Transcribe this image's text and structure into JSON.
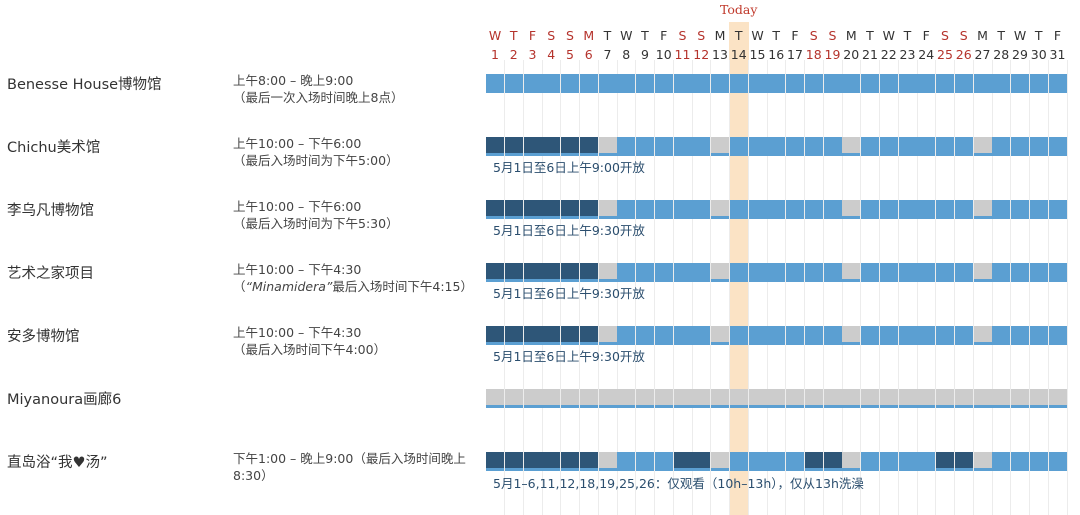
{
  "today": {
    "label": "Today",
    "day_index": 13
  },
  "colors": {
    "open": "#5b9fd2",
    "dark": "#2e5678",
    "closed": "#cccccc",
    "today_band": "#fbe3c5",
    "today_text": "#c0392b",
    "weekend_text": "#b5332c",
    "weekday_text": "#333333",
    "note_text": "#2b4e6e"
  },
  "days": [
    {
      "dow": "W",
      "num": "1",
      "red": true
    },
    {
      "dow": "T",
      "num": "2",
      "red": true
    },
    {
      "dow": "F",
      "num": "3",
      "red": true
    },
    {
      "dow": "S",
      "num": "4",
      "red": true
    },
    {
      "dow": "S",
      "num": "5",
      "red": true
    },
    {
      "dow": "M",
      "num": "6",
      "red": true
    },
    {
      "dow": "T",
      "num": "7",
      "red": false
    },
    {
      "dow": "W",
      "num": "8",
      "red": false
    },
    {
      "dow": "T",
      "num": "9",
      "red": false
    },
    {
      "dow": "F",
      "num": "10",
      "red": false
    },
    {
      "dow": "S",
      "num": "11",
      "red": true
    },
    {
      "dow": "S",
      "num": "12",
      "red": true
    },
    {
      "dow": "M",
      "num": "13",
      "red": false
    },
    {
      "dow": "T",
      "num": "14",
      "red": false
    },
    {
      "dow": "W",
      "num": "15",
      "red": false
    },
    {
      "dow": "T",
      "num": "16",
      "red": false
    },
    {
      "dow": "F",
      "num": "17",
      "red": false
    },
    {
      "dow": "S",
      "num": "18",
      "red": true
    },
    {
      "dow": "S",
      "num": "19",
      "red": true
    },
    {
      "dow": "M",
      "num": "20",
      "red": false
    },
    {
      "dow": "T",
      "num": "21",
      "red": false
    },
    {
      "dow": "W",
      "num": "22",
      "red": false
    },
    {
      "dow": "T",
      "num": "23",
      "red": false
    },
    {
      "dow": "F",
      "num": "24",
      "red": false
    },
    {
      "dow": "S",
      "num": "25",
      "red": true
    },
    {
      "dow": "S",
      "num": "26",
      "red": true
    },
    {
      "dow": "M",
      "num": "27",
      "red": false
    },
    {
      "dow": "T",
      "num": "28",
      "red": false
    },
    {
      "dow": "W",
      "num": "29",
      "red": false
    },
    {
      "dow": "T",
      "num": "30",
      "red": false
    },
    {
      "dow": "F",
      "num": "31",
      "red": false
    }
  ],
  "venues": [
    {
      "name": "Benesse House博物馆",
      "hours_line1": "上午8:00 – 晚上9:00",
      "hours_line2": "（最后一次入场时间晚上8点）",
      "hours_line2_em": "",
      "hours_line2_rest": "",
      "note": "",
      "status": [
        "o",
        "o",
        "o",
        "o",
        "o",
        "o",
        "o",
        "o",
        "o",
        "o",
        "o",
        "o",
        "o",
        "o",
        "o",
        "o",
        "o",
        "o",
        "o",
        "o",
        "o",
        "o",
        "o",
        "o",
        "o",
        "o",
        "o",
        "o",
        "o",
        "o",
        "o"
      ]
    },
    {
      "name": "Chichu美术馆",
      "hours_line1": "上午10:00 – 下午6:00",
      "hours_line2": "（最后入场时间为下午5:00）",
      "hours_line2_em": "",
      "hours_line2_rest": "",
      "note": "5月1日至6日上午9:00开放",
      "status": [
        "d",
        "d",
        "d",
        "d",
        "d",
        "d",
        "c",
        "o",
        "o",
        "o",
        "o",
        "o",
        "c",
        "o",
        "o",
        "o",
        "o",
        "o",
        "o",
        "c",
        "o",
        "o",
        "o",
        "o",
        "o",
        "o",
        "c",
        "o",
        "o",
        "o",
        "o"
      ]
    },
    {
      "name": "李乌凡博物馆",
      "hours_line1": "上午10:00 – 下午6:00",
      "hours_line2": "（最后入场时间为下午5:30）",
      "hours_line2_em": "",
      "hours_line2_rest": "",
      "note": "5月1日至6日上午9:30开放",
      "status": [
        "d",
        "d",
        "d",
        "d",
        "d",
        "d",
        "c",
        "o",
        "o",
        "o",
        "o",
        "o",
        "c",
        "o",
        "o",
        "o",
        "o",
        "o",
        "o",
        "c",
        "o",
        "o",
        "o",
        "o",
        "o",
        "o",
        "c",
        "o",
        "o",
        "o",
        "o"
      ]
    },
    {
      "name": "艺术之家项目",
      "hours_line1": "上午10:00 – 下午4:30",
      "hours_line2": "（",
      "hours_line2_em": "“Minamidera”",
      "hours_line2_rest": "最后入场时间下午4:15）",
      "note": "5月1日至6日上午9:30开放",
      "status": [
        "d",
        "d",
        "d",
        "d",
        "d",
        "d",
        "c",
        "o",
        "o",
        "o",
        "o",
        "o",
        "c",
        "o",
        "o",
        "o",
        "o",
        "o",
        "o",
        "c",
        "o",
        "o",
        "o",
        "o",
        "o",
        "o",
        "c",
        "o",
        "o",
        "o",
        "o"
      ]
    },
    {
      "name": "安多博物馆",
      "hours_line1": "上午10:00 – 下午4:30",
      "hours_line2": "（最后入场时间下午4:00）",
      "hours_line2_em": "",
      "hours_line2_rest": "",
      "note": "5月1日至6日上午9:30开放",
      "status": [
        "d",
        "d",
        "d",
        "d",
        "d",
        "d",
        "c",
        "o",
        "o",
        "o",
        "o",
        "o",
        "c",
        "o",
        "o",
        "o",
        "o",
        "o",
        "o",
        "c",
        "o",
        "o",
        "o",
        "o",
        "o",
        "o",
        "c",
        "o",
        "o",
        "o",
        "o"
      ]
    },
    {
      "name": "Miyanoura画廊6",
      "hours_line1": "",
      "hours_line2": "",
      "hours_line2_em": "",
      "hours_line2_rest": "",
      "note": "",
      "status": [
        "c",
        "c",
        "c",
        "c",
        "c",
        "c",
        "c",
        "c",
        "c",
        "c",
        "c",
        "c",
        "c",
        "c",
        "c",
        "c",
        "c",
        "c",
        "c",
        "c",
        "c",
        "c",
        "c",
        "c",
        "c",
        "c",
        "c",
        "c",
        "c",
        "c",
        "c"
      ]
    },
    {
      "name": "直岛浴“我♥汤”",
      "hours_line1": "下午1:00 – 晚上9:00（最后入场时间晚上8:30）",
      "hours_line2": "",
      "hours_line2_em": "",
      "hours_line2_rest": "",
      "note": "5月1–6,11,12,18,19,25,26：仅观看（10h–13h），仅从13h洗澡",
      "status": [
        "d",
        "d",
        "d",
        "d",
        "d",
        "d",
        "c",
        "o",
        "o",
        "o",
        "d",
        "d",
        "c",
        "o",
        "o",
        "o",
        "o",
        "d",
        "d",
        "c",
        "o",
        "o",
        "o",
        "o",
        "d",
        "d",
        "c",
        "o",
        "o",
        "o",
        "o"
      ]
    }
  ]
}
